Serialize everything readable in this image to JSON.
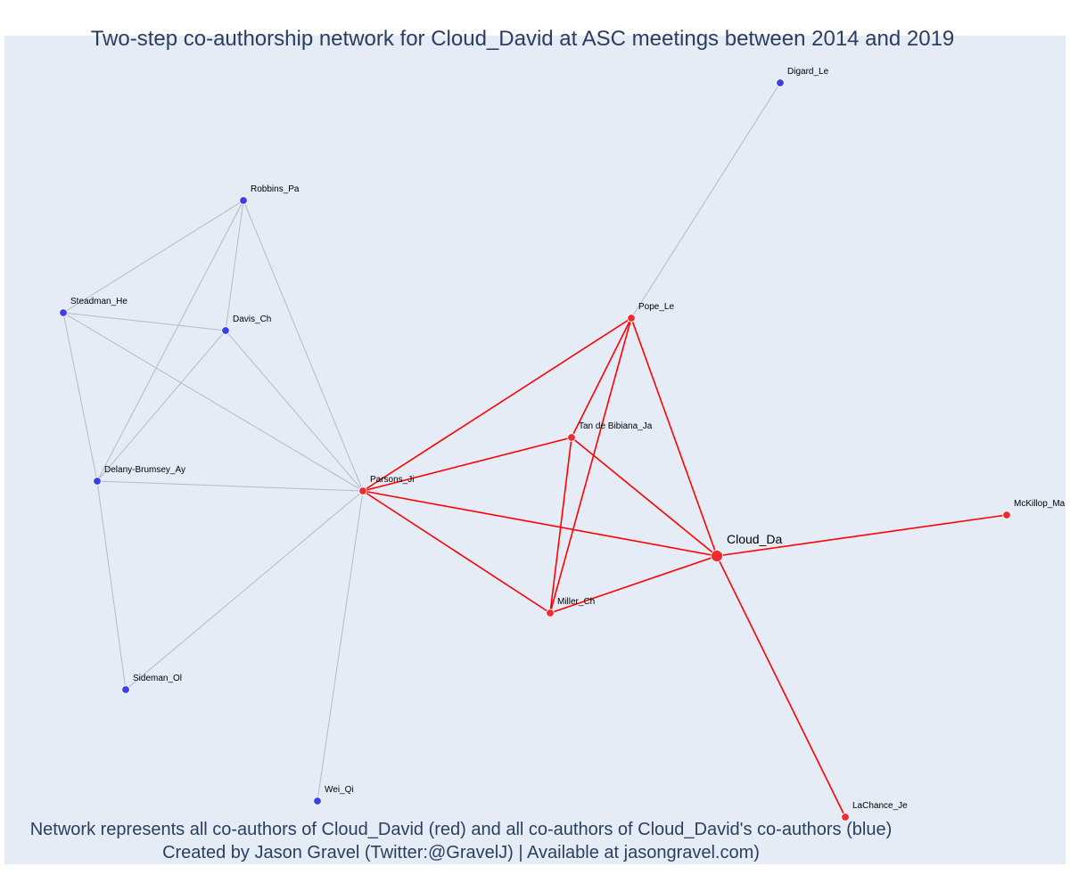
{
  "title": "Two-step co-authorship network for Cloud_David at ASC meetings between 2014 and 2019",
  "footer": {
    "line1": "Network represents all co-authors of Cloud_David (red) and all co-authors of Cloud_David's co-authors (blue)",
    "line2": "Created by Jason Gravel (Twitter:@GravelJ) | Available at jasongravel.com)"
  },
  "colors": {
    "first_degree": "#ef2b2b",
    "second_degree": "#3d3df0",
    "red_edge": "#ff0000",
    "grey_edge": "#b8b8c8",
    "background": "#e5ecf6"
  },
  "chart_data": {
    "type": "network",
    "center": "Cloud_Da",
    "nodes": [
      {
        "id": "Cloud_Da",
        "group": "center"
      },
      {
        "id": "Parsons_Ji",
        "group": "red"
      },
      {
        "id": "Pope_Le",
        "group": "red"
      },
      {
        "id": "Tan de Bibiana_Ja",
        "group": "red"
      },
      {
        "id": "Miller_Ch",
        "group": "red"
      },
      {
        "id": "McKillop_Ma",
        "group": "red"
      },
      {
        "id": "LaChance_Je",
        "group": "red"
      },
      {
        "id": "Digard_Le",
        "group": "blue"
      },
      {
        "id": "Robbins_Pa",
        "group": "blue"
      },
      {
        "id": "Steadman_He",
        "group": "blue"
      },
      {
        "id": "Davis_Ch",
        "group": "blue"
      },
      {
        "id": "Delany-Brumsey_Ay",
        "group": "blue"
      },
      {
        "id": "Sideman_Ol",
        "group": "blue"
      },
      {
        "id": "Wei_Qi",
        "group": "blue"
      }
    ],
    "edges": [
      {
        "source": "Cloud_Da",
        "target": "Parsons_Ji",
        "type": "red"
      },
      {
        "source": "Cloud_Da",
        "target": "Pope_Le",
        "type": "red"
      },
      {
        "source": "Cloud_Da",
        "target": "Tan de Bibiana_Ja",
        "type": "red"
      },
      {
        "source": "Cloud_Da",
        "target": "Miller_Ch",
        "type": "red"
      },
      {
        "source": "Cloud_Da",
        "target": "McKillop_Ma",
        "type": "red"
      },
      {
        "source": "Cloud_Da",
        "target": "LaChance_Je",
        "type": "red"
      },
      {
        "source": "Parsons_Ji",
        "target": "Pope_Le",
        "type": "red"
      },
      {
        "source": "Parsons_Ji",
        "target": "Tan de Bibiana_Ja",
        "type": "red"
      },
      {
        "source": "Parsons_Ji",
        "target": "Miller_Ch",
        "type": "red"
      },
      {
        "source": "Pope_Le",
        "target": "Tan de Bibiana_Ja",
        "type": "red"
      },
      {
        "source": "Pope_Le",
        "target": "Miller_Ch",
        "type": "red"
      },
      {
        "source": "Tan de Bibiana_Ja",
        "target": "Miller_Ch",
        "type": "red"
      },
      {
        "source": "Pope_Le",
        "target": "Digard_Le",
        "type": "grey"
      },
      {
        "source": "Parsons_Ji",
        "target": "Robbins_Pa",
        "type": "grey"
      },
      {
        "source": "Parsons_Ji",
        "target": "Steadman_He",
        "type": "grey"
      },
      {
        "source": "Parsons_Ji",
        "target": "Davis_Ch",
        "type": "grey"
      },
      {
        "source": "Parsons_Ji",
        "target": "Delany-Brumsey_Ay",
        "type": "grey"
      },
      {
        "source": "Parsons_Ji",
        "target": "Sideman_Ol",
        "type": "grey"
      },
      {
        "source": "Parsons_Ji",
        "target": "Wei_Qi",
        "type": "grey"
      },
      {
        "source": "Robbins_Pa",
        "target": "Steadman_He",
        "type": "grey"
      },
      {
        "source": "Robbins_Pa",
        "target": "Davis_Ch",
        "type": "grey"
      },
      {
        "source": "Robbins_Pa",
        "target": "Delany-Brumsey_Ay",
        "type": "grey"
      },
      {
        "source": "Steadman_He",
        "target": "Davis_Ch",
        "type": "grey"
      },
      {
        "source": "Steadman_He",
        "target": "Delany-Brumsey_Ay",
        "type": "grey"
      },
      {
        "source": "Davis_Ch",
        "target": "Delany-Brumsey_Ay",
        "type": "grey"
      },
      {
        "source": "Delany-Brumsey_Ay",
        "target": "Sideman_Ol",
        "type": "grey"
      }
    ]
  }
}
